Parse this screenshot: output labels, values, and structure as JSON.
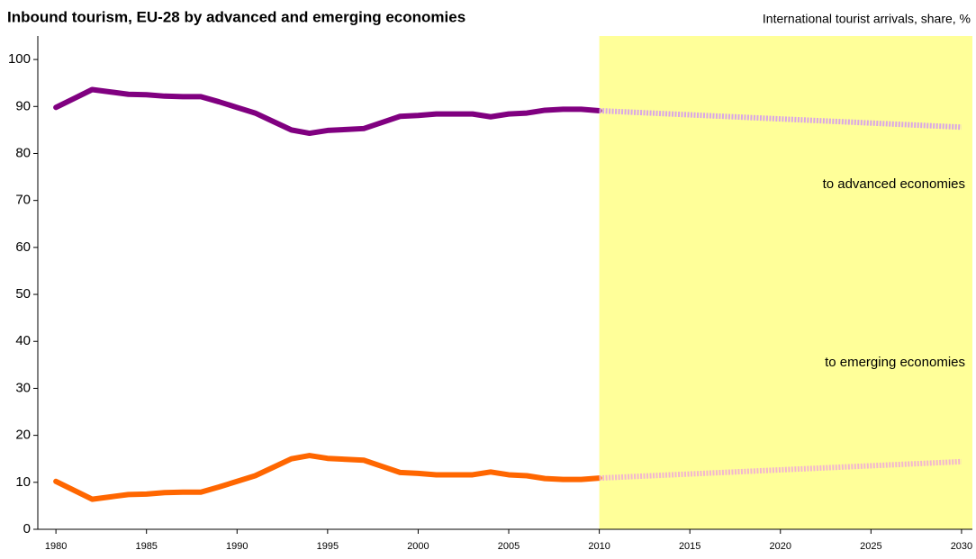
{
  "chart_data": {
    "type": "line",
    "title": "Inbound tourism, EU-28 by advanced and emerging economies",
    "subtitle": "International tourist arrivals, share, %",
    "xlim": [
      1979,
      2030.6
    ],
    "ylim": [
      0,
      105
    ],
    "xticks": [
      1980,
      1985,
      1990,
      1995,
      2000,
      2005,
      2010,
      2015,
      2020,
      2025,
      2030
    ],
    "yticks": [
      0,
      10,
      20,
      30,
      40,
      50,
      60,
      70,
      80,
      90,
      100
    ],
    "grid": false,
    "shaded_from": 2010,
    "shade_color": "#ffff99",
    "series": [
      {
        "name": "to advanced economies",
        "color": "#800080",
        "dashed": false,
        "x": [
          1980,
          1981,
          1982,
          1983,
          1984,
          1985,
          1986,
          1987,
          1988,
          1989,
          1990,
          1991,
          1992,
          1993,
          1994,
          1995,
          1996,
          1997,
          1998,
          1999,
          2000,
          2001,
          2002,
          2003,
          2004,
          2005,
          2006,
          2007,
          2008,
          2009,
          2010
        ],
        "values": [
          89.8,
          91.7,
          93.6,
          93.1,
          92.6,
          92.5,
          92.2,
          92.1,
          92.1,
          91,
          89.8,
          88.6,
          86.8,
          85,
          84.3,
          84.9,
          85.1,
          85.3,
          86.6,
          87.9,
          88.1,
          88.4,
          88.4,
          88.4,
          87.8,
          88.4,
          88.6,
          89.2,
          89.4,
          89.4,
          89.1
        ]
      },
      {
        "color": "#d9a6e6",
        "dashed": true,
        "x": [
          2010,
          2030
        ],
        "values": [
          89.1,
          85.6
        ]
      },
      {
        "name": "to emerging economies",
        "color": "#ff6600",
        "dashed": false,
        "x": [
          1980,
          1981,
          1982,
          1983,
          1984,
          1985,
          1986,
          1987,
          1988,
          1989,
          1990,
          1991,
          1992,
          1993,
          1994,
          1995,
          1996,
          1997,
          1998,
          1999,
          2000,
          2001,
          2002,
          2003,
          2004,
          2005,
          2006,
          2007,
          2008,
          2009,
          2010
        ],
        "values": [
          10.2,
          8.3,
          6.4,
          6.9,
          7.4,
          7.5,
          7.8,
          7.9,
          7.9,
          9,
          10.2,
          11.4,
          13.2,
          15,
          15.7,
          15.1,
          14.9,
          14.7,
          13.4,
          12.1,
          11.9,
          11.6,
          11.6,
          11.6,
          12.2,
          11.6,
          11.4,
          10.8,
          10.6,
          10.6,
          10.9
        ]
      },
      {
        "color": "#f2b6cf",
        "dashed": true,
        "x": [
          2010,
          2030
        ],
        "values": [
          10.9,
          14.4
        ]
      }
    ]
  }
}
